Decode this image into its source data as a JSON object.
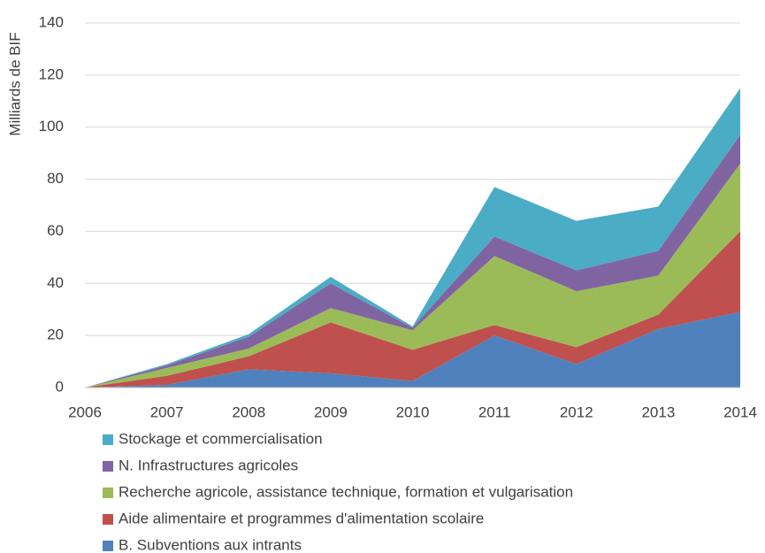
{
  "chart_data": {
    "type": "stacked_area",
    "y_label": "Milliards de BIF",
    "x": [
      2006,
      2007,
      2008,
      2009,
      2010,
      2011,
      2012,
      2013,
      2014
    ],
    "xlim": [
      2006,
      2014
    ],
    "xticks": [
      2006,
      2007,
      2008,
      2009,
      2010,
      2011,
      2012,
      2013,
      2014
    ],
    "ylim": [
      0,
      140
    ],
    "yticks": [
      0,
      20,
      40,
      60,
      80,
      100,
      120,
      140
    ],
    "grid": true,
    "series": [
      {
        "name": "B. Subventions aux intrants",
        "color": "#4f81bd",
        "values": [
          0,
          1,
          7,
          5.5,
          2.5,
          20,
          9,
          22.5,
          29
        ]
      },
      {
        "name": "Aide alimentaire et programmes d'alimentation scolaire",
        "color": "#c0504d",
        "values": [
          0,
          3.5,
          5,
          19.5,
          12,
          4,
          6.5,
          5.5,
          31
        ]
      },
      {
        "name": "Recherche agricole, assistance technique, formation et vulgarisation",
        "color": "#9bbb59",
        "values": [
          0,
          3,
          3,
          5.5,
          7.5,
          26.5,
          21.5,
          15,
          26
        ]
      },
      {
        "name": "N. Infrastructures agricoles",
        "color": "#8064a2",
        "values": [
          0,
          1,
          4.5,
          9.5,
          1,
          7.5,
          8,
          9.5,
          11
        ]
      },
      {
        "name": "Stockage et commercialisation",
        "color": "#4bacc6",
        "values": [
          0,
          0.5,
          1,
          2.5,
          0.5,
          19,
          19,
          17,
          18
        ]
      }
    ]
  }
}
